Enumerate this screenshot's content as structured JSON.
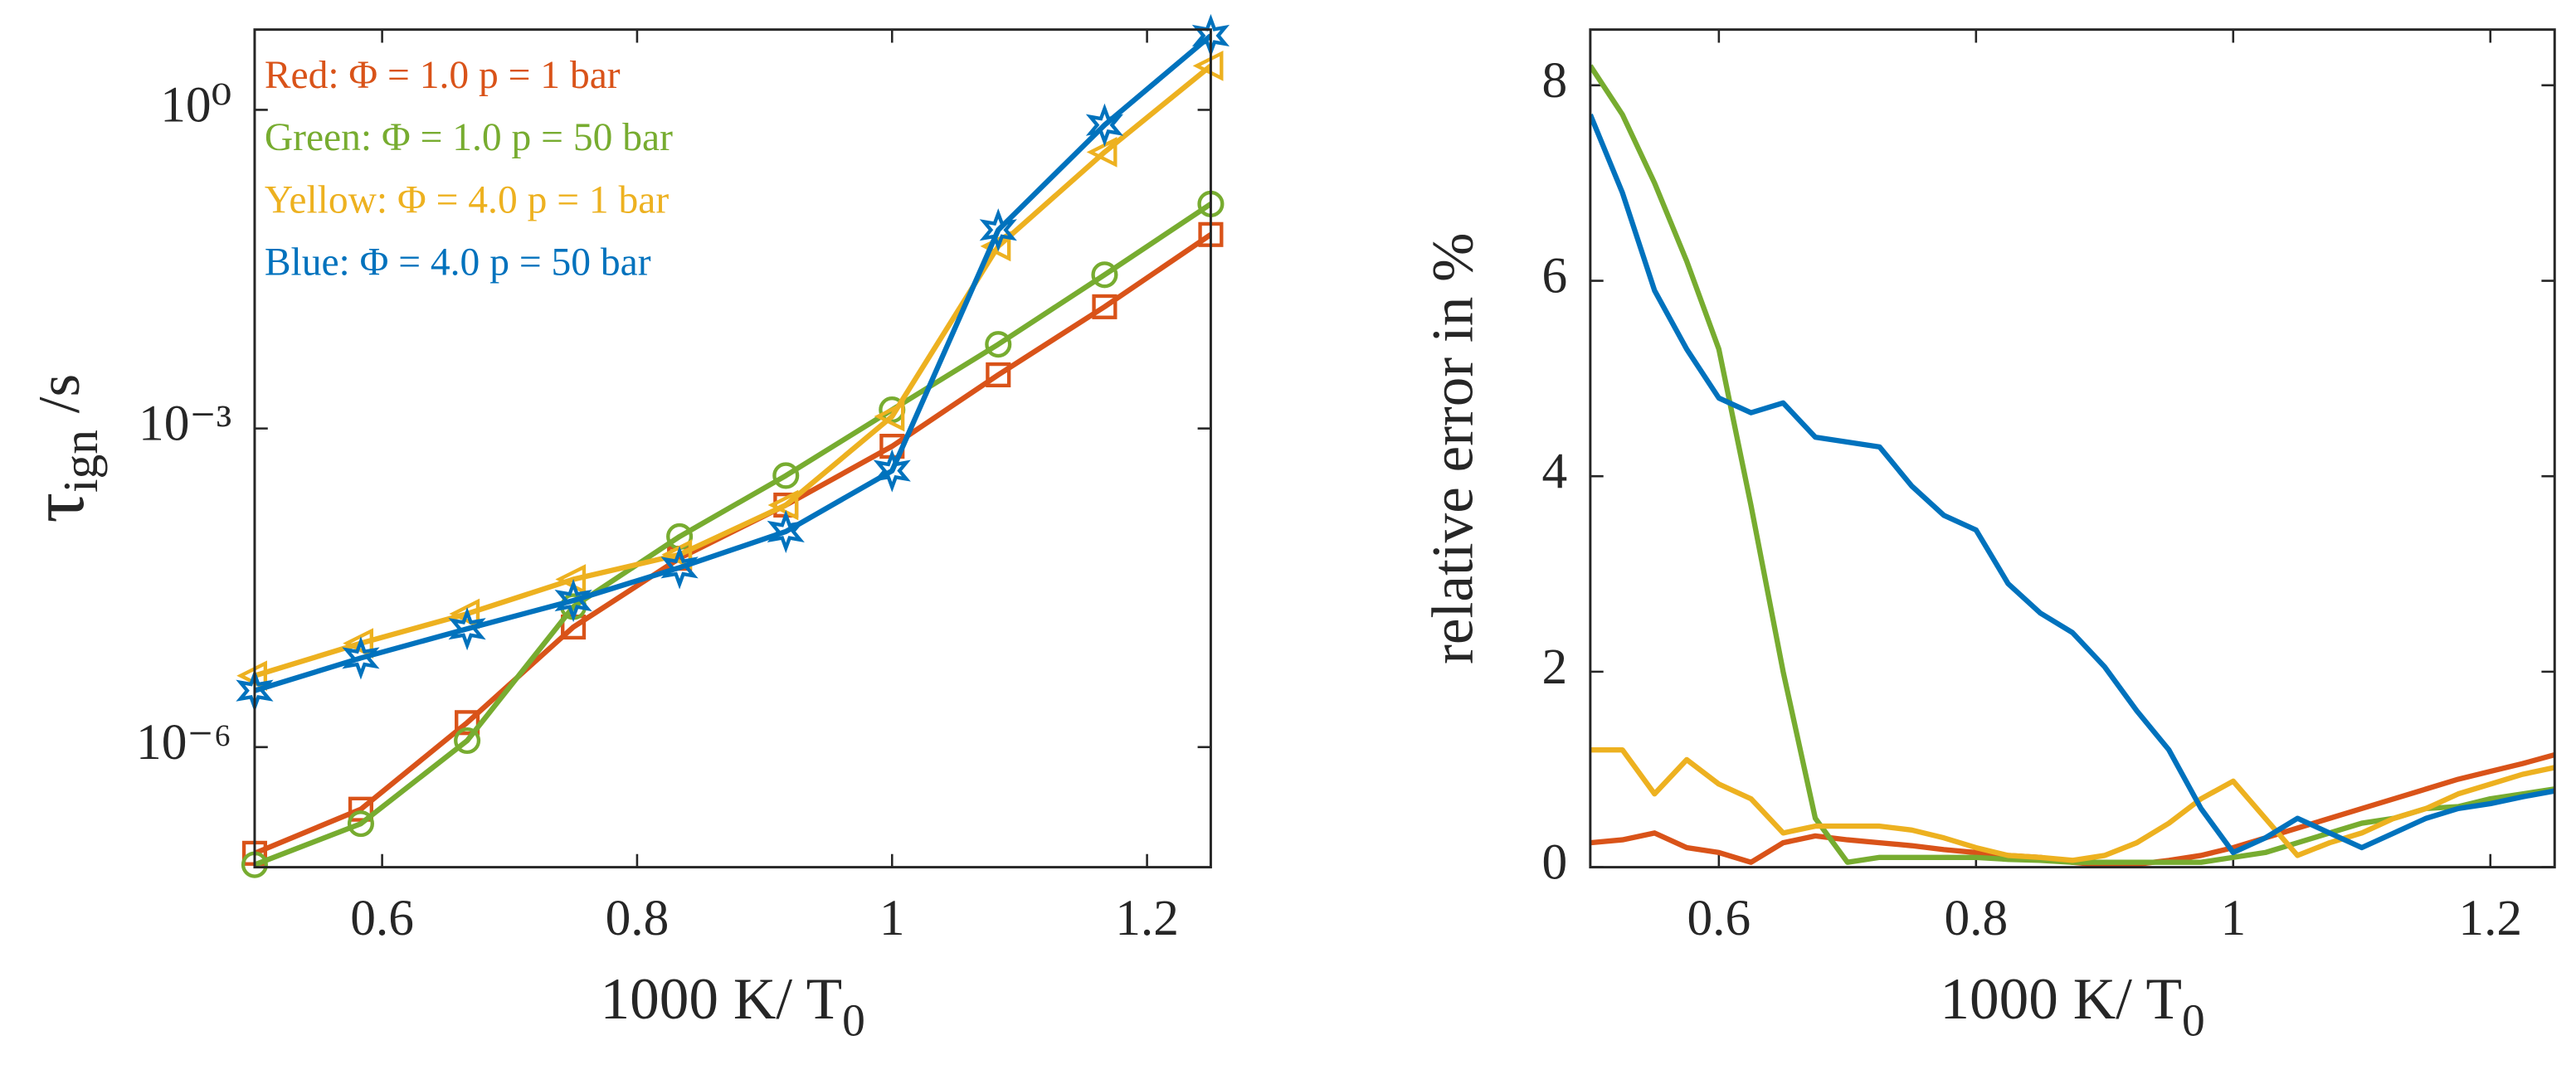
{
  "chart_data": [
    {
      "type": "line",
      "log_y": true,
      "xlabel": "1000 K/ T",
      "xlabel_subscript": "0",
      "ylabel": "τ",
      "ylabel_subscript": "ign",
      "ylabel_unit": "/s",
      "x": [
        0.5,
        0.5833,
        0.6667,
        0.75,
        0.8333,
        0.9167,
        1,
        1.0833,
        1.1667,
        1.25
      ],
      "xlim": [
        0.5,
        1.25
      ],
      "xticks": [
        0.6,
        0.8,
        1,
        1.2
      ],
      "ylim": [
        7.4e-08,
        5.7
      ],
      "yticks": [
        {
          "value": 1e-06,
          "label": "10⁻⁶"
        },
        {
          "value": 0.001,
          "label": "10⁻³"
        },
        {
          "value": 1,
          "label": "10⁰"
        }
      ],
      "series": [
        {
          "name": "Red: Φ = 1.0   p = 1 bar",
          "color": "#d95319",
          "marker": "square",
          "values": [
            1e-07,
            2.6e-07,
            1.7e-06,
            1.35e-05,
            6e-05,
            0.00019,
            0.00068,
            0.0032,
            0.014,
            0.067
          ]
        },
        {
          "name": "Green: Φ = 1.0   p = 50 bar",
          "color": "#77ac30",
          "marker": "circle",
          "values": [
            7.8e-08,
            1.9e-07,
            1.15e-06,
            2.1e-05,
            9.6e-05,
            0.00036,
            0.0015,
            0.0062,
            0.028,
            0.13
          ]
        },
        {
          "name": "Yellow: Φ = 4.0   p = 1 bar",
          "color": "#edb120",
          "marker": "triangle-left",
          "values": [
            4.7e-06,
            9.5e-06,
            1.8e-05,
            3.8e-05,
            6.5e-05,
            0.00019,
            0.0013,
            0.052,
            0.4,
            2.6
          ]
        },
        {
          "name": "Blue: Φ = 4.0   p = 50 bar",
          "color": "#0072bd",
          "marker": "hexagram",
          "values": [
            3.4e-06,
            6.9e-06,
            1.3e-05,
            2.4e-05,
            4.9e-05,
            0.000107,
            0.0004,
            0.074,
            0.72,
            5.0
          ]
        }
      ]
    },
    {
      "type": "line",
      "log_y": false,
      "xlabel": "1000 K/ T",
      "xlabel_subscript": "0",
      "ylabel": "relative error in %",
      "x": [
        0.5,
        0.525,
        0.55,
        0.575,
        0.6,
        0.625,
        0.65,
        0.675,
        0.7,
        0.725,
        0.75,
        0.775,
        0.8,
        0.825,
        0.85,
        0.875,
        0.9,
        0.925,
        0.95,
        0.975,
        1,
        1.025,
        1.05,
        1.075,
        1.1,
        1.125,
        1.15,
        1.175,
        1.2,
        1.225,
        1.25
      ],
      "xlim": [
        0.5,
        1.25
      ],
      "xticks": [
        0.6,
        0.8,
        1,
        1.2
      ],
      "ylim": [
        0,
        8.57
      ],
      "yticks": [
        0,
        2,
        4,
        6,
        8
      ],
      "series": [
        {
          "color": "#d95319",
          "values": [
            0.25,
            0.28,
            0.35,
            0.2,
            0.15,
            0.05,
            0.25,
            0.32,
            0.28,
            0.25,
            0.22,
            0.18,
            0.15,
            0.12,
            0.1,
            0.05,
            0.02,
            0.03,
            0.07,
            0.12,
            0.2,
            0.3,
            0.4,
            0.5,
            0.6,
            0.7,
            0.8,
            0.9,
            0.98,
            1.06,
            1.15
          ]
        },
        {
          "color": "#77ac30",
          "values": [
            8.2,
            7.7,
            7.0,
            6.2,
            5.3,
            3.7,
            2.0,
            0.5,
            0.05,
            0.1,
            0.1,
            0.1,
            0.1,
            0.08,
            0.07,
            0.05,
            0.05,
            0.05,
            0.05,
            0.05,
            0.1,
            0.15,
            0.25,
            0.35,
            0.45,
            0.5,
            0.6,
            0.62,
            0.7,
            0.75,
            0.8
          ]
        },
        {
          "color": "#edb120",
          "values": [
            1.2,
            1.2,
            0.75,
            1.1,
            0.85,
            0.7,
            0.35,
            0.42,
            0.42,
            0.42,
            0.38,
            0.3,
            0.2,
            0.12,
            0.1,
            0.07,
            0.12,
            0.25,
            0.45,
            0.7,
            0.88,
            0.5,
            0.12,
            0.25,
            0.35,
            0.5,
            0.6,
            0.75,
            0.85,
            0.95,
            1.02
          ]
        },
        {
          "color": "#0072bd",
          "values": [
            7.7,
            6.9,
            5.9,
            5.3,
            4.8,
            4.65,
            4.75,
            4.4,
            4.35,
            4.3,
            3.9,
            3.6,
            3.45,
            2.9,
            2.6,
            2.4,
            2.05,
            1.6,
            1.2,
            0.6,
            0.15,
            0.3,
            0.5,
            0.35,
            0.2,
            0.35,
            0.5,
            0.6,
            0.65,
            0.72,
            0.78
          ]
        }
      ]
    }
  ]
}
